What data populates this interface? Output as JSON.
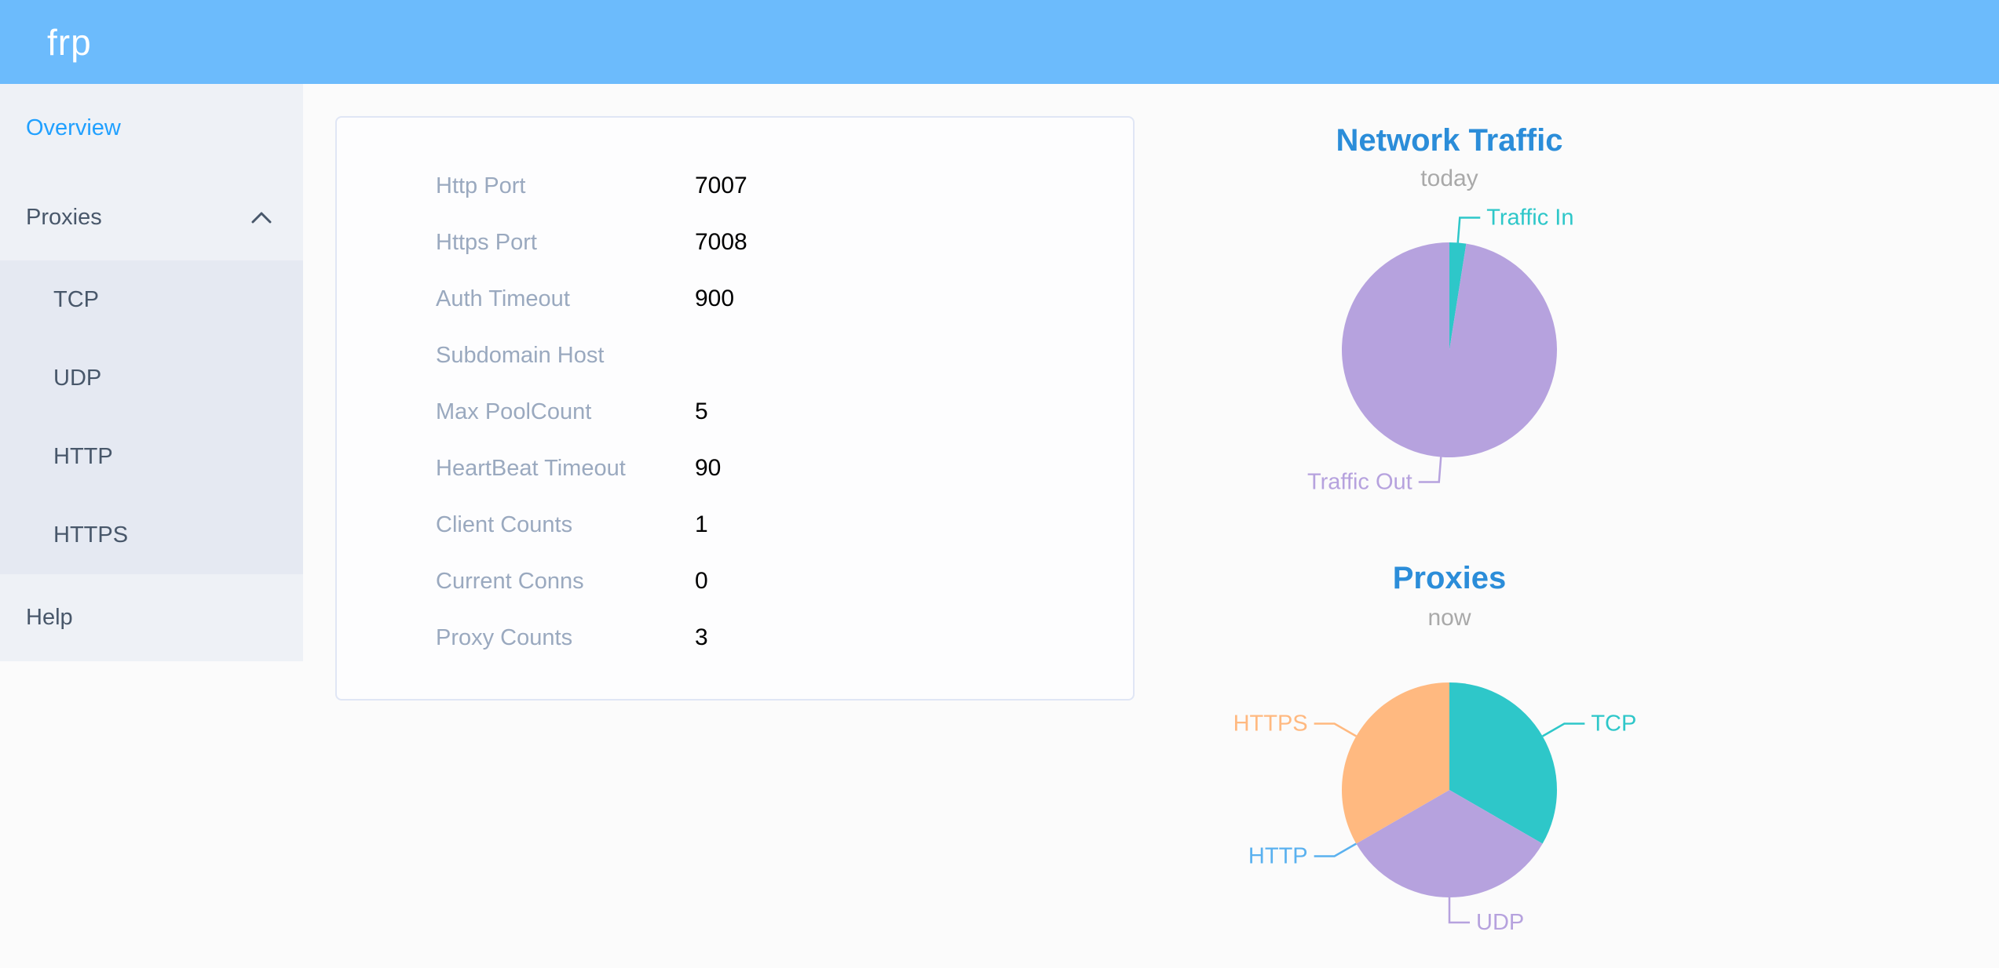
{
  "header": {
    "logo": "frp"
  },
  "sidebar": {
    "items": [
      {
        "label": "Overview",
        "active": true
      },
      {
        "label": "Proxies",
        "expanded": true,
        "children": [
          {
            "label": "TCP"
          },
          {
            "label": "UDP"
          },
          {
            "label": "HTTP"
          },
          {
            "label": "HTTPS"
          }
        ]
      },
      {
        "label": "Help"
      }
    ]
  },
  "overview_card": {
    "rows": [
      {
        "label": "Http Port",
        "value": "7007"
      },
      {
        "label": "Https Port",
        "value": "7008"
      },
      {
        "label": "Auth Timeout",
        "value": "900"
      },
      {
        "label": "Subdomain Host",
        "value": ""
      },
      {
        "label": "Max PoolCount",
        "value": "5"
      },
      {
        "label": "HeartBeat Timeout",
        "value": "90"
      },
      {
        "label": "Client Counts",
        "value": "1"
      },
      {
        "label": "Current Conns",
        "value": "0"
      },
      {
        "label": "Proxy Counts",
        "value": "3"
      }
    ]
  },
  "chart_data": [
    {
      "type": "pie",
      "title": "Network Traffic",
      "subtitle": "today",
      "series": [
        {
          "name": "Traffic In",
          "value": 2.5,
          "color": "#2ec7c9"
        },
        {
          "name": "Traffic Out",
          "value": 97.5,
          "color": "#b6a2de"
        }
      ],
      "units": "percent (estimated from slice angles)",
      "label_style": "outside-callout",
      "legend_position": "none"
    },
    {
      "type": "pie",
      "title": "Proxies",
      "subtitle": "now",
      "series": [
        {
          "name": "TCP",
          "value": 1,
          "color": "#2ec7c9"
        },
        {
          "name": "UDP",
          "value": 1,
          "color": "#b6a2de"
        },
        {
          "name": "HTTP",
          "value": 0,
          "color": "#5ab1ef"
        },
        {
          "name": "HTTPS",
          "value": 1,
          "color": "#ffb980"
        }
      ],
      "units": "proxy count",
      "label_style": "outside-callout",
      "legend_position": "none"
    }
  ],
  "colors": {
    "header_bg": "#6cbbfc",
    "sidebar_bg": "#eef1f6",
    "submenu_bg": "#e5e9f2",
    "active_item": "#20a0ff",
    "menu_text": "#48576a",
    "chart_title": "#2b8dd9",
    "subtitle_text": "#a9a9a9",
    "label_text": "#9aa9bf",
    "value_text": "#000000",
    "page_bg": "#fbfbfb",
    "card_border": "#e0e6f5",
    "teal": "#2ec7c9",
    "purple": "#b6a2de",
    "blue": "#5ab1ef",
    "orange": "#ffb980"
  }
}
